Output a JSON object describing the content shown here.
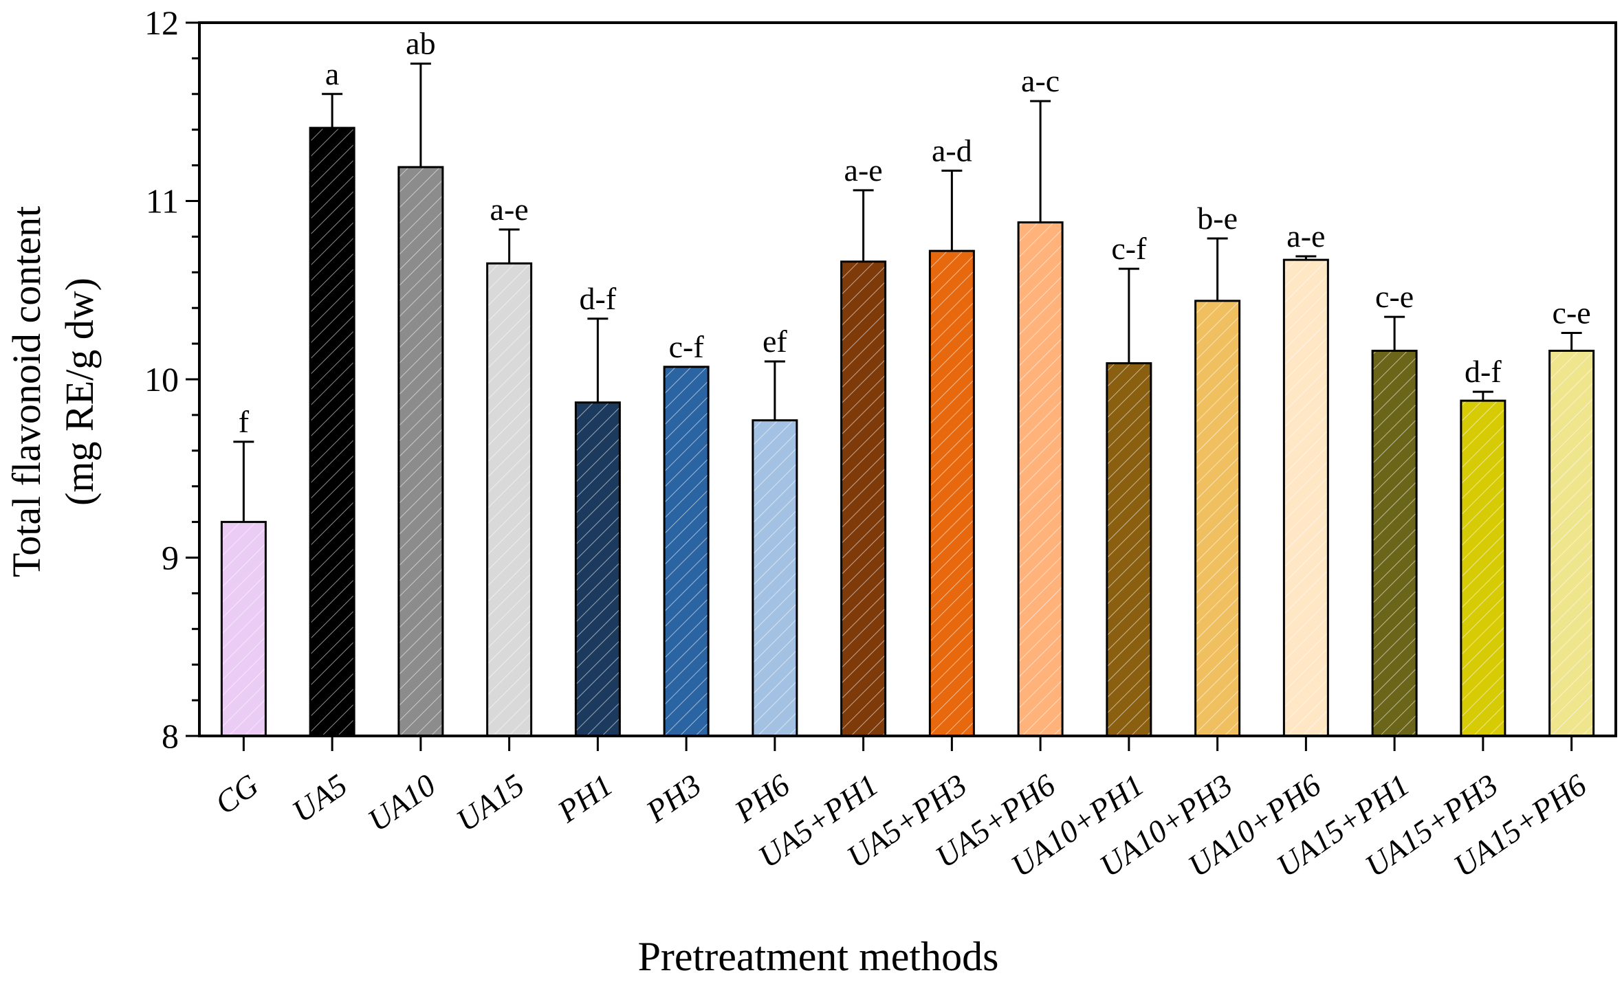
{
  "chart_data": {
    "type": "bar",
    "title": "",
    "xlabel": "Pretreatment methods",
    "ylabel_line1": "Total flavonoid content",
    "ylabel_line2": "(mg RE/g dw)",
    "ylim": [
      8,
      12
    ],
    "yticks": [
      "8",
      "9",
      "10",
      "11",
      "12"
    ],
    "categories": [
      "CG",
      "UA5",
      "UA10",
      "UA15",
      "PH1",
      "PH3",
      "PH6",
      "UA5+PH1",
      "UA5+PH3",
      "UA5+PH6",
      "UA10+PH1",
      "UA10+PH3",
      "UA10+PH6",
      "UA15+PH1",
      "UA15+PH3",
      "UA15+PH6"
    ],
    "values": [
      9.2,
      11.41,
      11.19,
      10.65,
      9.87,
      10.07,
      9.77,
      10.66,
      10.72,
      10.88,
      10.09,
      10.44,
      10.67,
      10.16,
      9.88,
      10.16
    ],
    "errors": [
      0.45,
      0.19,
      0.58,
      0.19,
      0.47,
      0.0,
      0.33,
      0.4,
      0.45,
      0.68,
      0.53,
      0.35,
      0.02,
      0.19,
      0.05,
      0.1
    ],
    "letters": [
      "f",
      "a",
      "ab",
      "a-e",
      "d-f",
      "c-f",
      "ef",
      "a-e",
      "a-d",
      "a-c",
      "c-f",
      "b-e",
      "a-e",
      "c-e",
      "d-f",
      "c-e"
    ],
    "colors": [
      "#EBCCF5",
      "#000000",
      "#8C8C8C",
      "#D9D9D9",
      "#1C3A5E",
      "#2A64A2",
      "#A3C2E3",
      "#7F3A0A",
      "#E8680E",
      "#FFB27A",
      "#8A5F10",
      "#F0C060",
      "#FFE6C4",
      "#6B6519",
      "#D7CB06",
      "#EFE58D"
    ]
  }
}
